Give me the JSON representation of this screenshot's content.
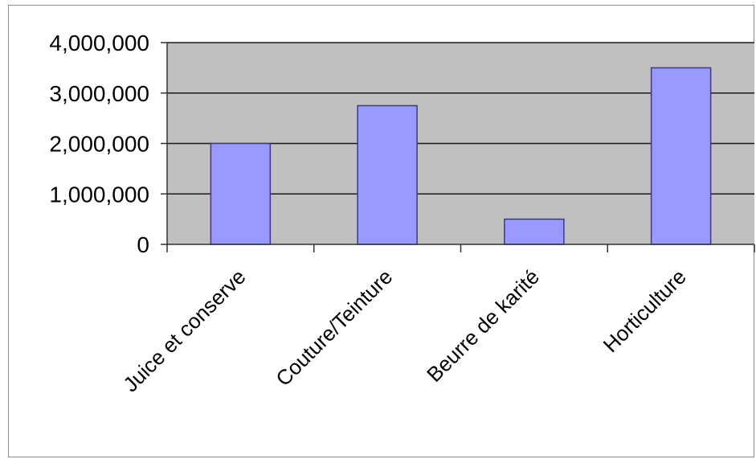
{
  "chart_data": {
    "type": "bar",
    "title": "",
    "xlabel": "",
    "ylabel": "",
    "categories": [
      "Juice et conserve",
      "Couture/Teinture",
      "Beurre de karité",
      "Horticulture"
    ],
    "values": [
      2000000,
      2750000,
      500000,
      3500000
    ],
    "ylim": [
      0,
      4000000
    ],
    "yticks": [
      0,
      1000000,
      2000000,
      3000000,
      4000000
    ],
    "ytick_labels": [
      "0",
      "1,000,000",
      "2,000,000",
      "3,000,000",
      "4,000,000"
    ],
    "grid": true,
    "legend": "none",
    "colors": {
      "bar_fill": "#9999ff",
      "bar_stroke": "#3a3a80",
      "plot_background": "#c0c0c0",
      "gridline": "#1a1a1a"
    }
  }
}
